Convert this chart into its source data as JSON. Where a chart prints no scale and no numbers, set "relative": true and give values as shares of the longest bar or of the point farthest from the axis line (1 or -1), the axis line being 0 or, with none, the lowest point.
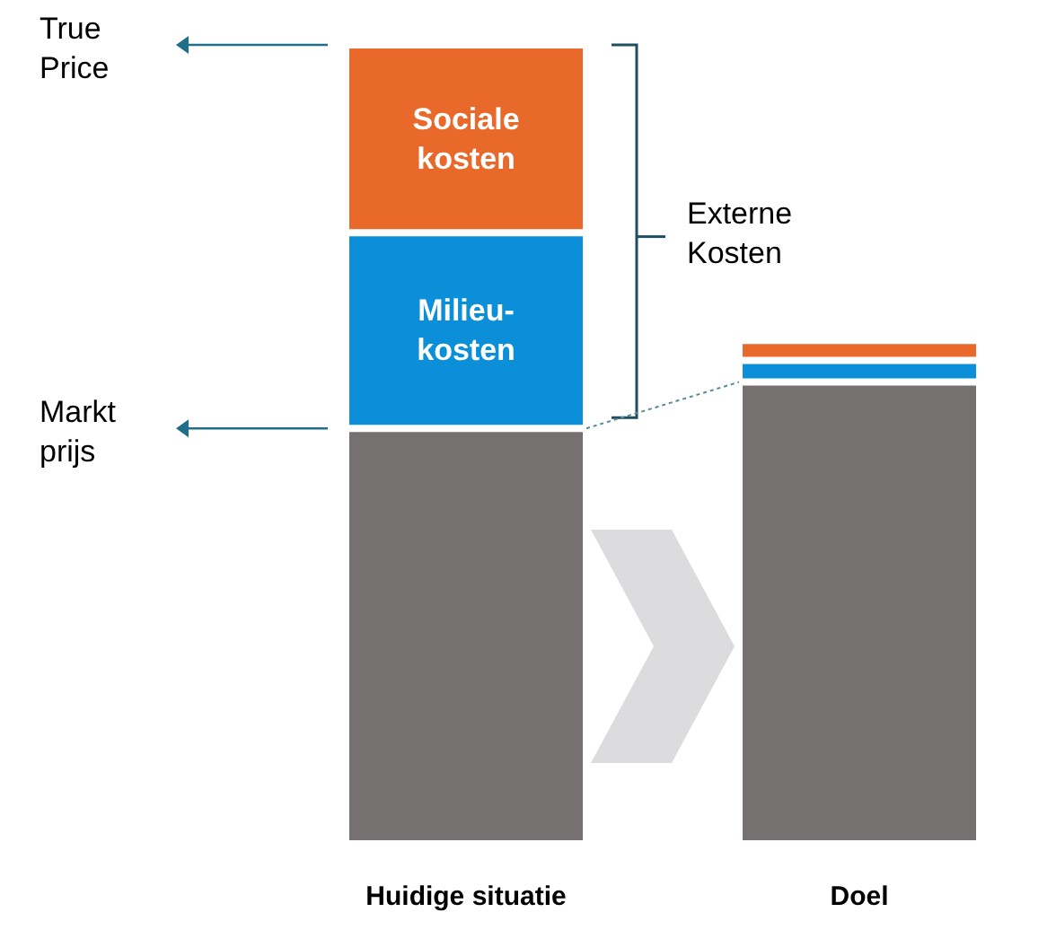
{
  "chart_data": {
    "type": "bar",
    "stacked": true,
    "relative": true,
    "categories": [
      "Huidige situatie",
      "Doel"
    ],
    "series": [
      {
        "color": "#767171",
        "values": [
          0.52,
          0.578
        ]
      },
      {
        "name": "Milieu-kosten",
        "color": "#0a8fd8",
        "values": [
          0.245,
          0.027
        ]
      },
      {
        "name": "Sociale kosten",
        "color": "#e8692a",
        "values": [
          0.235,
          0.025
        ]
      }
    ],
    "annotations": [
      "True Price",
      "Markt prijs",
      "Externe Kosten"
    ],
    "legend": false
  }
}
